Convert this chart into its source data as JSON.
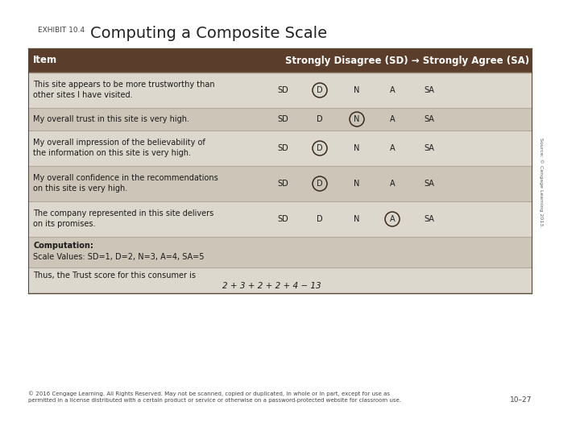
{
  "title_label": "EXHIBIT 10.4",
  "title_main": "Computing a Composite Scale",
  "header_col1": "Item",
  "header_col2": "Strongly Disagree (SD) → Strongly Agree (SA)",
  "header_bg": "#5a3e2b",
  "header_fg": "#ffffff",
  "row_bg_light": "#ddd8ce",
  "row_bg_dark": "#ccc5b8",
  "separator_color": "#b0a898",
  "rows": [
    {
      "item_line1": "This site appears to be more trustworthy than",
      "item_line2": "other sites I have visited.",
      "circled": 1
    },
    {
      "item_line1": "My overall trust in this site is very high.",
      "item_line2": "",
      "circled": 2
    },
    {
      "item_line1": "My overall impression of the believability of",
      "item_line2": "the information on this site is very high.",
      "circled": 1
    },
    {
      "item_line1": "My overall confidence in the recommendations",
      "item_line2": "on this site is very high.",
      "circled": 1
    },
    {
      "item_line1": "The company represented in this site delivers",
      "item_line2": "on its promises.",
      "circled": 3
    }
  ],
  "computation_line1": "Computation:",
  "computation_line2": "Scale Values: SD=1, D=2, N=3, A=4, SA=5",
  "trust_line1": "Thus, the Trust score for this consumer is",
  "trust_line2": "2 + 3 + 2 + 2 + 4 − 13",
  "source_text": "Source: © Cengage Learning 2013.",
  "footer_text": "© 2016 Cengage Learning. All Rights Reserved. May not be scanned, copied or duplicated, in whole or in part, except for use as\npermitted in a license distributed with a certain product or service or otherwise on a password-protected website for classroom use.",
  "footer_right": "10–27",
  "fig_bg": "#ffffff",
  "scale_labels": [
    "SD",
    "D",
    "N",
    "A",
    "SA"
  ]
}
